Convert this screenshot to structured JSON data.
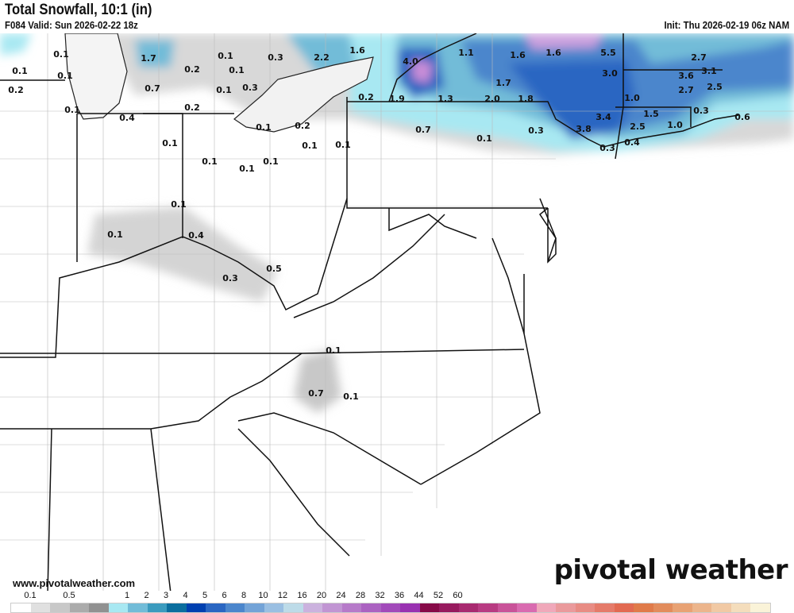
{
  "header": {
    "title": "Total Snowfall, 10:1 (in)",
    "valid": "F084 Valid: Sun 2026-02-22 18z",
    "init": "Init: Thu 2026-02-19 06z NAM"
  },
  "branding": {
    "logo": "pivotal weather",
    "url": "www.pivotalweather.com"
  },
  "legend": {
    "tick_labels": [
      "0.1",
      "0.5",
      "1",
      "2",
      "3",
      "4",
      "5",
      "6",
      "8",
      "10",
      "12",
      "16",
      "20",
      "24",
      "28",
      "32",
      "36",
      "44",
      "52",
      "60"
    ],
    "colors": [
      "#ffffff",
      "#e0e0e0",
      "#c8c8c8",
      "#ababab",
      "#919191",
      "#a8e8f2",
      "#72bcd8",
      "#3b9bbe",
      "#0b6e9e",
      "#0040b0",
      "#2a66c2",
      "#4b86cc",
      "#73a3d7",
      "#9abfe2",
      "#bddbe8",
      "#cbb2de",
      "#c195d3",
      "#b67ac9",
      "#ab62c1",
      "#a24aba",
      "#9932b1",
      "#870a48",
      "#971a5e",
      "#a82a70",
      "#b83b82",
      "#c95399",
      "#d96bb0",
      "#f0a8ba",
      "#ea9a9c",
      "#e88c84",
      "#e57b6a",
      "#e26a52",
      "#e07b4a",
      "#e28c5c",
      "#e8a274",
      "#ecb58c",
      "#f1c9a4",
      "#f4ddbc",
      "#faf3d8"
    ]
  },
  "map_labels": [
    "0.1",
    "1.7",
    "0.1",
    "0.3",
    "2.2",
    "1.6",
    "0.1",
    "0.1",
    "0.2",
    "0.1",
    "0.2",
    "0.7",
    "0.1",
    "0.3",
    "0.1",
    "0.2",
    "0.4",
    "0.1",
    "0.2",
    "0.1",
    "0.1",
    "0.1",
    "0.1",
    "0.1",
    "0.1",
    "4.0",
    "1.1",
    "1.6",
    "1.6",
    "5.5",
    "2.7",
    "3.0",
    "3.6",
    "3.1",
    "1.7",
    "2.5",
    "0.2",
    "1.9",
    "1.3",
    "2.0",
    "1.8",
    "1.0",
    "2.7",
    "1.5",
    "0.3",
    "0.6",
    "0.7",
    "0.3",
    "3.4",
    "3.8",
    "2.5",
    "1.0",
    "0.1",
    "0.3",
    "0.4",
    "0.1",
    "0.1",
    "0.4",
    "0.3",
    "0.5",
    "0.1",
    "0.7",
    "0.1"
  ]
}
